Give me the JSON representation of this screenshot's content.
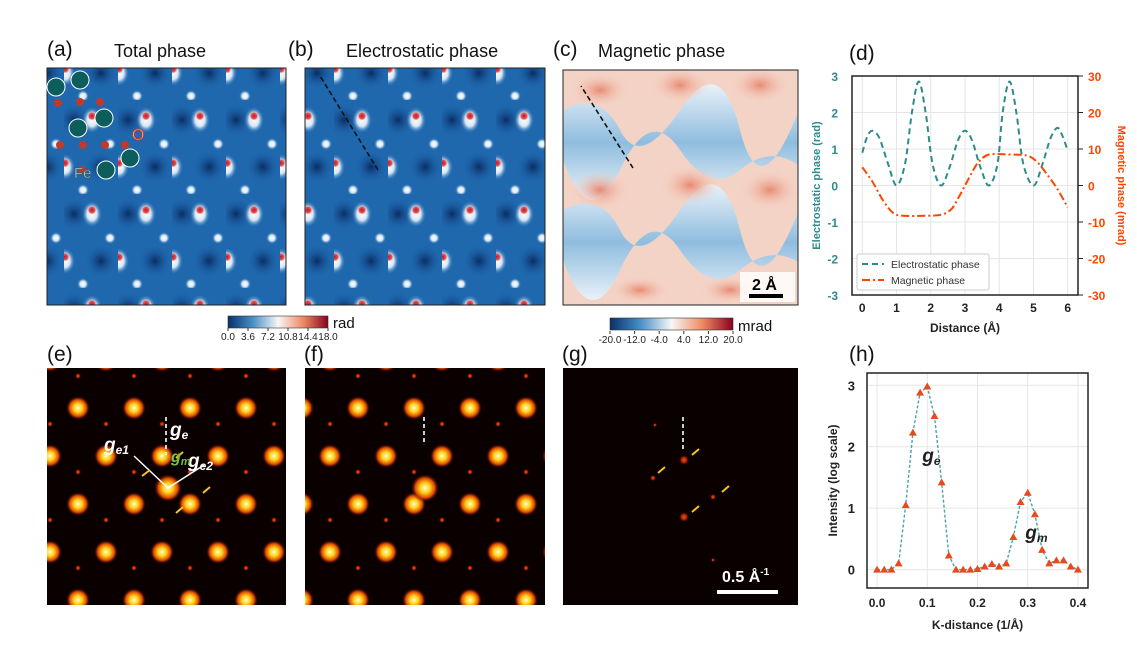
{
  "panels": {
    "a": {
      "label": "(a)",
      "title": "Total phase",
      "atom_fe": "Fe",
      "atom_o": "O"
    },
    "b": {
      "label": "(b)",
      "title": "Electrostatic phase"
    },
    "c": {
      "label": "(c)",
      "title": "Magnetic phase",
      "scale_bar": "2 Å"
    },
    "d": {
      "label": "(d)"
    },
    "e": {
      "label": "(e)",
      "g_e": "g",
      "g_e_sub": "e",
      "g_e1": "g",
      "g_e1_sub": "e1",
      "g_e2": "g",
      "g_e2_sub": "e2",
      "g_m": "g",
      "g_m_sub": "m"
    },
    "f": {
      "label": "(f)"
    },
    "g": {
      "label": "(g)",
      "scale_bar": "0.5 Å",
      "scale_bar_sup": "-1"
    },
    "h": {
      "label": "(h)"
    }
  },
  "colorbars": {
    "total": {
      "unit": "rad",
      "ticks": [
        "0.0",
        "3.6",
        "7.2",
        "10.8",
        "14.4",
        "18.0"
      ],
      "colors": [
        "#08306b",
        "#2171b5",
        "#c6dbef",
        "#fbe3d6",
        "#ef8a62",
        "#b2182b",
        "#67001f"
      ]
    },
    "magnetic": {
      "unit": "mrad",
      "ticks": [
        "-20.0",
        "-12.0",
        "-4.0",
        "4.0",
        "12.0",
        "20.0"
      ],
      "colors": [
        "#08306b",
        "#2171b5",
        "#c6dbef",
        "#f7f7f7",
        "#f4a582",
        "#d6604d",
        "#67001f"
      ]
    }
  },
  "chart_data": [
    {
      "type": "line",
      "panel": "d",
      "xlabel": "Distance (Å)",
      "ylabel": "Electrostatic phase (rad)",
      "y2label": "Magnetic phase (mrad)",
      "xlim": [
        -0.3,
        6.3
      ],
      "ylim": [
        -3,
        3
      ],
      "y2lim": [
        -30,
        30
      ],
      "xticks": [
        0,
        1,
        2,
        3,
        4,
        5,
        6
      ],
      "yticks": [
        -3,
        -2,
        -1,
        0,
        1,
        2,
        3
      ],
      "y2ticks": [
        -30,
        -20,
        -10,
        0,
        10,
        20,
        30
      ],
      "grid": true,
      "legend": "lower-left",
      "colors": {
        "electrostatic": "#2e8b8b",
        "magnetic": "#ff4500"
      },
      "series": [
        {
          "name": "Electrostatic phase",
          "axis": "left",
          "style": "dashed",
          "x": [
            0,
            0.15,
            0.3,
            0.5,
            0.75,
            1.0,
            1.25,
            1.45,
            1.65,
            1.85,
            2.05,
            2.3,
            2.55,
            2.8,
            3.0,
            3.2,
            3.45,
            3.7,
            3.95,
            4.1,
            4.3,
            4.5,
            4.7,
            5.0,
            5.25,
            5.5,
            5.7,
            5.85,
            6.0
          ],
          "y": [
            0.9,
            1.35,
            1.5,
            1.3,
            0.6,
            0.0,
            0.6,
            2.0,
            2.85,
            2.0,
            0.6,
            0.0,
            0.5,
            1.25,
            1.5,
            1.25,
            0.5,
            0.0,
            0.6,
            2.0,
            2.85,
            2.0,
            0.6,
            0.0,
            0.55,
            1.3,
            1.58,
            1.35,
            0.95
          ]
        },
        {
          "name": "Magnetic phase",
          "axis": "right",
          "style": "dashdot",
          "x": [
            0,
            0.3,
            0.6,
            0.9,
            1.2,
            1.8,
            2.3,
            2.6,
            2.8,
            3.0,
            3.2,
            3.4,
            3.7,
            4.2,
            4.8,
            5.1,
            5.4,
            5.7,
            6.0
          ],
          "y": [
            5,
            1,
            -4,
            -7.5,
            -8.3,
            -8.3,
            -8,
            -6.5,
            -3.5,
            0,
            3.5,
            6.5,
            8.5,
            8.5,
            8.2,
            6.5,
            3,
            -1,
            -6
          ]
        }
      ]
    },
    {
      "type": "line",
      "panel": "h",
      "xlabel": "K-distance (1/Å)",
      "ylabel": "Intensity (log scale)",
      "xlim": [
        -0.02,
        0.42
      ],
      "ylim": [
        -0.3,
        3.2
      ],
      "xticks": [
        "0.0",
        "0.1",
        "0.2",
        "0.3",
        "0.4"
      ],
      "yticks": [
        0,
        1,
        2,
        3
      ],
      "grid": true,
      "colors": {
        "line": "#4aa3a3",
        "marker": "#e8491d"
      },
      "annotations": [
        {
          "text": "g",
          "sub": "e",
          "x": 0.09,
          "y": 1.75
        },
        {
          "text": "g",
          "sub": "m",
          "x": 0.295,
          "y": 0.5
        }
      ],
      "series": [
        {
          "marker": "triangle",
          "x": [
            0,
            0.0143,
            0.0286,
            0.0429,
            0.0571,
            0.0714,
            0.0857,
            0.1,
            0.1143,
            0.1286,
            0.1429,
            0.1571,
            0.1714,
            0.1857,
            0.2,
            0.2143,
            0.2286,
            0.2429,
            0.2571,
            0.2714,
            0.2857,
            0.3,
            0.3143,
            0.3286,
            0.3429,
            0.3571,
            0.3714,
            0.3857,
            0.4
          ],
          "y": [
            0,
            0,
            0,
            0.1,
            1.05,
            2.23,
            2.88,
            2.98,
            2.5,
            1.42,
            0.23,
            0,
            0,
            0,
            0.01,
            0.05,
            0.09,
            0.05,
            0.1,
            0.53,
            1.1,
            1.25,
            0.9,
            0.32,
            0.1,
            0.15,
            0.15,
            0.05,
            0
          ]
        }
      ]
    }
  ]
}
